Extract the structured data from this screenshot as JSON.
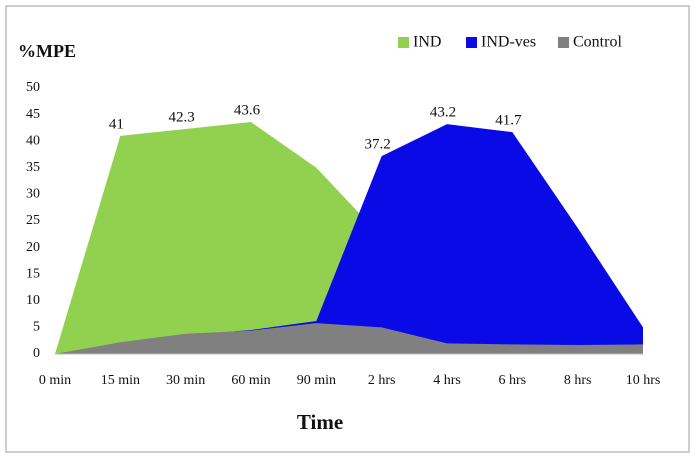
{
  "chart_data": {
    "type": "area",
    "title": "%MPE",
    "x_label": "Time",
    "categories": [
      "0 min",
      "15 min",
      "30 min",
      "60 min",
      "90 min",
      "2 hrs",
      "4 hrs",
      "6 hrs",
      "8 hrs",
      "10 hrs"
    ],
    "series": [
      {
        "name": "IND",
        "color": "#92d050",
        "values": [
          0,
          41,
          42.3,
          43.6,
          35,
          22,
          5,
          3,
          2,
          2
        ],
        "value_labels": [
          null,
          "41",
          "42.3",
          "43.6",
          null,
          null,
          null,
          null,
          null,
          null
        ]
      },
      {
        "name": "IND-ves",
        "color": "#0a0ae6",
        "values": [
          0,
          2,
          3.5,
          4.5,
          6.2,
          37.2,
          43.2,
          41.7,
          23.7,
          5
        ],
        "value_labels": [
          null,
          null,
          null,
          null,
          null,
          "37.2",
          "43.2",
          "41.7",
          null,
          null
        ]
      },
      {
        "name": "Control",
        "color": "#808080",
        "values": [
          0,
          2.2,
          3.8,
          4.4,
          5.8,
          5,
          2,
          1.8,
          1.7,
          1.8
        ]
      }
    ],
    "ylim": [
      0,
      50
    ],
    "yticks": [
      0,
      5,
      10,
      15,
      20,
      25,
      30,
      35,
      40,
      45,
      50
    ],
    "grid": false,
    "legend": "top-right"
  }
}
